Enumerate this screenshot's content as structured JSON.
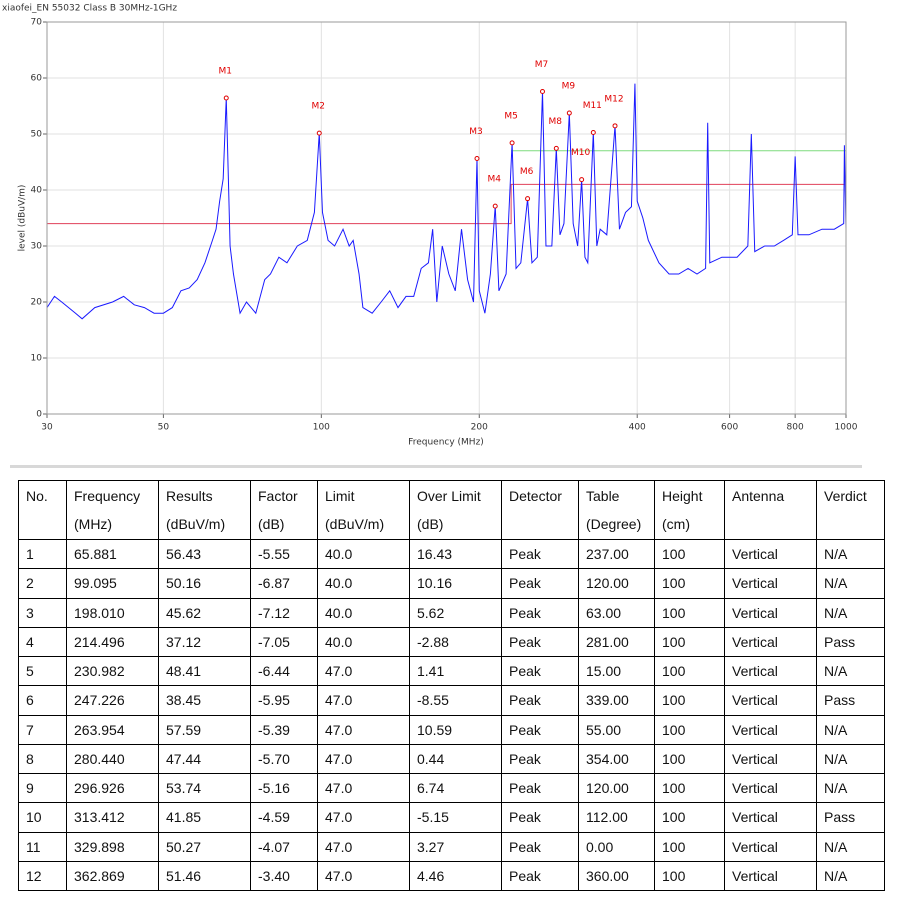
{
  "chart_data": {
    "type": "line",
    "title": "xiaofei_EN 55032 Class B 30MHz-1GHz",
    "x_label": "Frequency (MHz)",
    "y_label": "level (dBuV/m)",
    "xscale": "log",
    "grid": true,
    "xlim": [
      30,
      1000
    ],
    "xticks": [
      30,
      50,
      100,
      200,
      400,
      600,
      800,
      1000
    ],
    "ylim": [
      0,
      70
    ],
    "yticks": [
      0,
      10,
      20,
      30,
      40,
      50,
      60,
      70
    ],
    "series": [
      {
        "color": "#1a1aff",
        "x": [
          30,
          31,
          32,
          34,
          35,
          37,
          40,
          42,
          44,
          46,
          48,
          50,
          52,
          54,
          56,
          58,
          60,
          62,
          63,
          64,
          65,
          65.881,
          66.5,
          67,
          68,
          70,
          72,
          75,
          78,
          80,
          83,
          86,
          90,
          94,
          97,
          99.095,
          100.5,
          103,
          106,
          110,
          113,
          115,
          118,
          120,
          125,
          130,
          135,
          140,
          145,
          150,
          155,
          160,
          163,
          166,
          170,
          175,
          180,
          185,
          190,
          195,
          198.01,
          200,
          205,
          210,
          214.496,
          218,
          225,
          230.982,
          235,
          240,
          247.226,
          252,
          258,
          263.954,
          268,
          275,
          280.44,
          285,
          290,
          296.926,
          302,
          308,
          313.412,
          318,
          322,
          329.898,
          335,
          340,
          350,
          362.869,
          370,
          380,
          390,
          396,
          400,
          410,
          420,
          440,
          460,
          480,
          500,
          520,
          540,
          545,
          550,
          580,
          600,
          620,
          650,
          660,
          670,
          700,
          730,
          760,
          790,
          800,
          810,
          850,
          900,
          950,
          990,
          993,
          1000
        ],
        "values": [
          19,
          21,
          20,
          18,
          17,
          19,
          20,
          21,
          19.5,
          19,
          18,
          18,
          19,
          22,
          22.5,
          24,
          27,
          31,
          33,
          38,
          42,
          56.43,
          42,
          30,
          25,
          18,
          20,
          18,
          24,
          25,
          28,
          27,
          30,
          31,
          36,
          50.16,
          36,
          31,
          30,
          33,
          30,
          31,
          25,
          19,
          18,
          20,
          22,
          19,
          21,
          21,
          26,
          27,
          33,
          20,
          30,
          25,
          22,
          33,
          24,
          20,
          45.62,
          22,
          18,
          25,
          37.12,
          22,
          25,
          48.41,
          26,
          27,
          38.45,
          27,
          28,
          57.59,
          30,
          30,
          47.44,
          32,
          34,
          53.74,
          34,
          30,
          41.85,
          28,
          27,
          50.27,
          30,
          33,
          32,
          51.46,
          33,
          36,
          37,
          59,
          38,
          35,
          31,
          27,
          25,
          25,
          26,
          25,
          26,
          52,
          27,
          28,
          28,
          28,
          30,
          50,
          29,
          30,
          30,
          31,
          32,
          46,
          32,
          32,
          33,
          33,
          34,
          48,
          33
        ]
      },
      {
        "color": "#e0405a",
        "x": [
          30,
          230,
          230,
          1000
        ],
        "values": [
          34,
          34,
          41,
          41
        ]
      },
      {
        "color": "#7fdc7f",
        "x": [
          230,
          1000
        ],
        "values": [
          47,
          47
        ]
      }
    ],
    "markers": {
      "color": "#e00000",
      "labels": [
        "M1",
        "M2",
        "M3",
        "M4",
        "M5",
        "M6",
        "M7",
        "M8",
        "M9",
        "M10",
        "M11",
        "M12"
      ],
      "x": [
        65.881,
        99.095,
        198.01,
        214.496,
        230.982,
        247.226,
        263.954,
        280.44,
        296.926,
        313.412,
        329.898,
        362.869
      ],
      "values": [
        56.43,
        50.16,
        45.62,
        37.12,
        48.41,
        38.45,
        57.59,
        47.44,
        53.74,
        41.85,
        50.27,
        51.46
      ]
    }
  },
  "table": {
    "header": [
      [
        "No."
      ],
      [
        "Frequency",
        "(MHz)"
      ],
      [
        "Results",
        "(dBuV/m)"
      ],
      [
        "Factor",
        "(dB)"
      ],
      [
        "Limit",
        "(dBuV/m)"
      ],
      [
        "Over Limit",
        "(dB)"
      ],
      [
        "Detector"
      ],
      [
        "Table",
        "(Degree)"
      ],
      [
        "Height",
        "(cm)"
      ],
      [
        "Antenna"
      ],
      [
        "Verdict"
      ]
    ],
    "rows": [
      [
        "1",
        "65.881",
        "56.43",
        "-5.55",
        "40.0",
        "16.43",
        "Peak",
        "237.00",
        "100",
        "Vertical",
        "N/A"
      ],
      [
        "2",
        "99.095",
        "50.16",
        "-6.87",
        "40.0",
        "10.16",
        "Peak",
        "120.00",
        "100",
        "Vertical",
        "N/A"
      ],
      [
        "3",
        "198.010",
        "45.62",
        "-7.12",
        "40.0",
        "5.62",
        "Peak",
        "63.00",
        "100",
        "Vertical",
        "N/A"
      ],
      [
        "4",
        "214.496",
        "37.12",
        "-7.05",
        "40.0",
        "-2.88",
        "Peak",
        "281.00",
        "100",
        "Vertical",
        "Pass"
      ],
      [
        "5",
        "230.982",
        "48.41",
        "-6.44",
        "47.0",
        "1.41",
        "Peak",
        "15.00",
        "100",
        "Vertical",
        "N/A"
      ],
      [
        "6",
        "247.226",
        "38.45",
        "-5.95",
        "47.0",
        "-8.55",
        "Peak",
        "339.00",
        "100",
        "Vertical",
        "Pass"
      ],
      [
        "7",
        "263.954",
        "57.59",
        "-5.39",
        "47.0",
        "10.59",
        "Peak",
        "55.00",
        "100",
        "Vertical",
        "N/A"
      ],
      [
        "8",
        "280.440",
        "47.44",
        "-5.70",
        "47.0",
        "0.44",
        "Peak",
        "354.00",
        "100",
        "Vertical",
        "N/A"
      ],
      [
        "9",
        "296.926",
        "53.74",
        "-5.16",
        "47.0",
        "6.74",
        "Peak",
        "120.00",
        "100",
        "Vertical",
        "N/A"
      ],
      [
        "10",
        "313.412",
        "41.85",
        "-4.59",
        "47.0",
        "-5.15",
        "Peak",
        "112.00",
        "100",
        "Vertical",
        "Pass"
      ],
      [
        "11",
        "329.898",
        "50.27",
        "-4.07",
        "47.0",
        "3.27",
        "Peak",
        "0.00",
        "100",
        "Vertical",
        "N/A"
      ],
      [
        "12",
        "362.869",
        "51.46",
        "-3.40",
        "47.0",
        "4.46",
        "Peak",
        "360.00",
        "100",
        "Vertical",
        "N/A"
      ]
    ]
  }
}
